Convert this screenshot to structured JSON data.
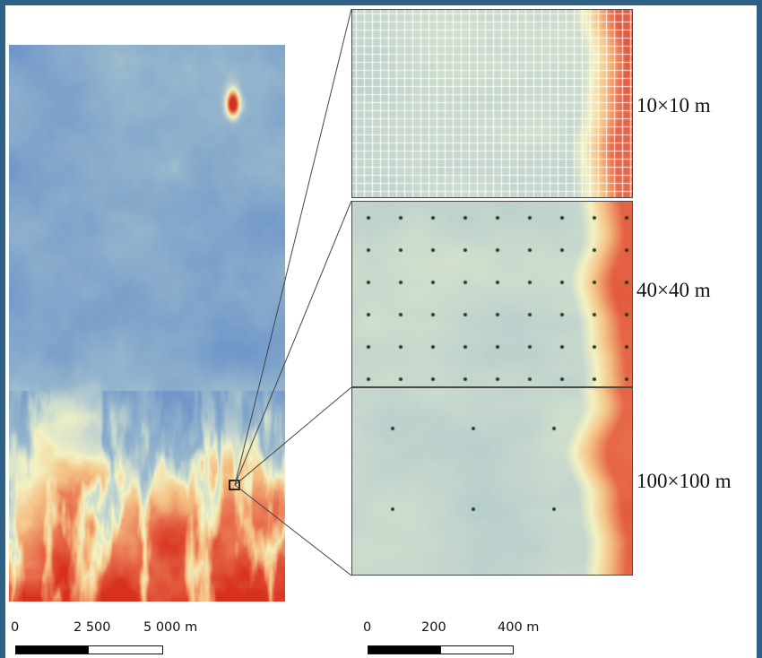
{
  "panels": [
    {
      "id": "panel-10",
      "label": "10×10 m",
      "point_spacing_m": 10
    },
    {
      "id": "panel-40",
      "label": "40×40 m",
      "point_spacing_m": 40
    },
    {
      "id": "panel-100",
      "label": "100×100 m",
      "point_spacing_m": 100
    }
  ],
  "scalebars": {
    "overview": {
      "ticks": [
        "0",
        "2 500",
        "5 000 m"
      ]
    },
    "detail": {
      "ticks": [
        "0",
        "200",
        "400 m"
      ]
    }
  },
  "colors": {
    "frame": "#2e5f86",
    "low_elevation": "#6f97c9",
    "mid_elevation": "#f3f2c2",
    "high_elevation": "#d7301f",
    "sample_points": "#1b3a14"
  }
}
